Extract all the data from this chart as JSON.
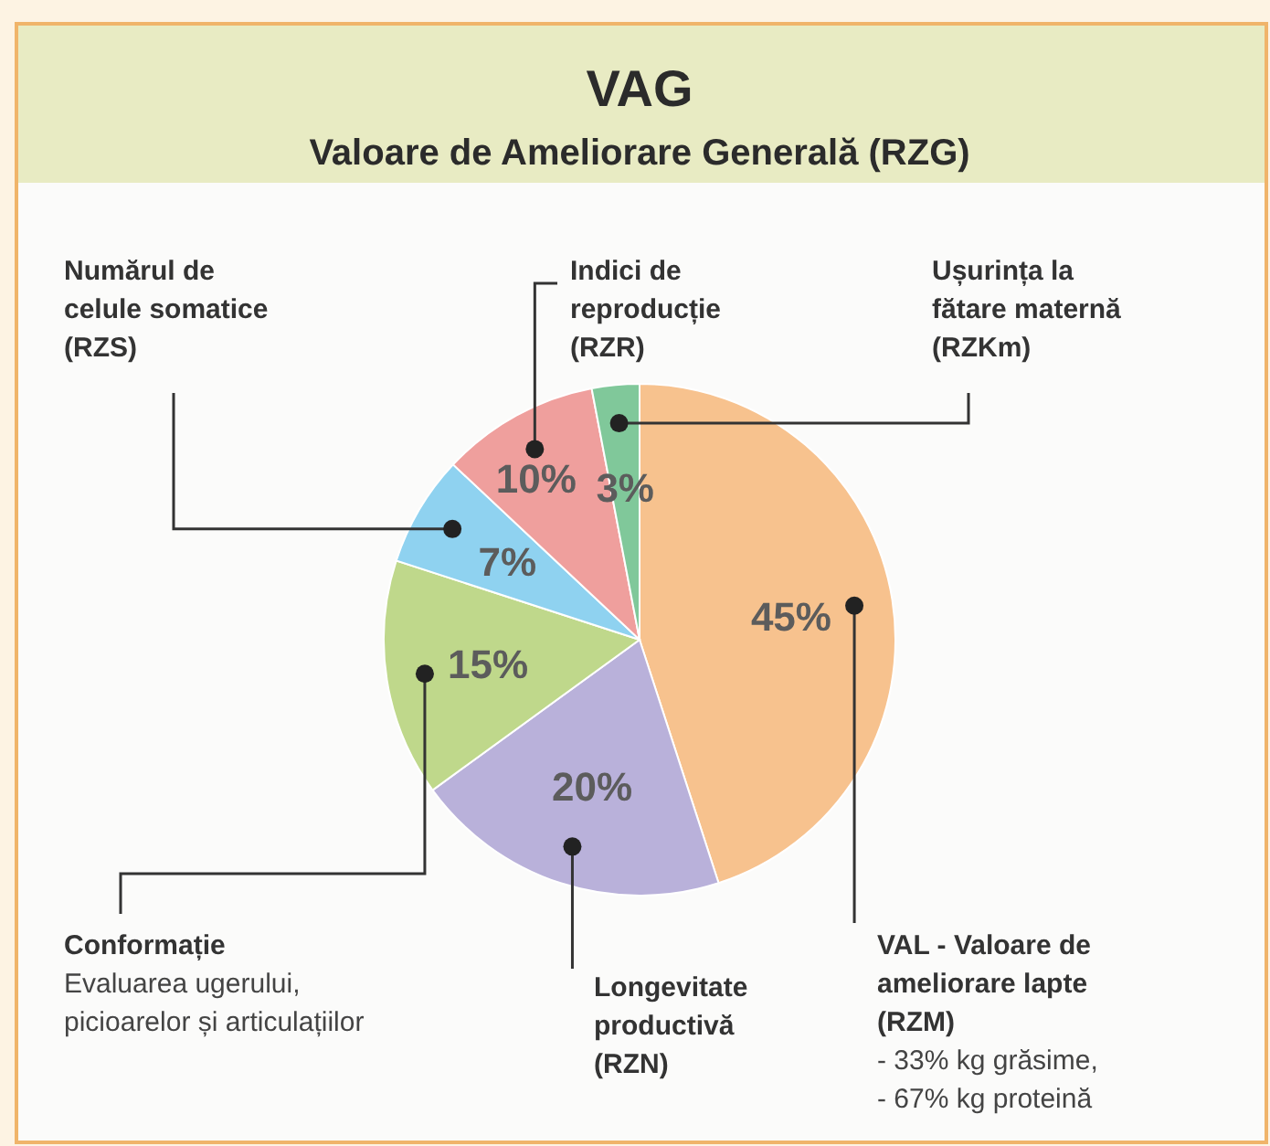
{
  "chart_data": {
    "type": "pie",
    "title": "VAG",
    "subtitle": "Valoare de Ameliorare Generală (RZG)",
    "categories": [
      "VAL - Valoare de ameliorare lapte (RZM)",
      "Longevitate productivă (RZN)",
      "Conformație",
      "Numărul de celule somatice (RZS)",
      "Indici de reproducție (RZR)",
      "Ușurința la fătare maternă (RZKm)"
    ],
    "values": [
      45,
      20,
      15,
      7,
      10,
      3
    ],
    "value_labels": [
      "45%",
      "20%",
      "15%",
      "7%",
      "10%",
      "3%"
    ],
    "colors": [
      "#f7c28e",
      "#b9b1da",
      "#bfd88b",
      "#8fd2f0",
      "#ef9f9d",
      "#80c89a"
    ],
    "annotations": [
      "Evaluarea ugerului, picioarelor și articulațiilor",
      "- 33% kg grăsime, - 67% kg proteină"
    ]
  }
}
